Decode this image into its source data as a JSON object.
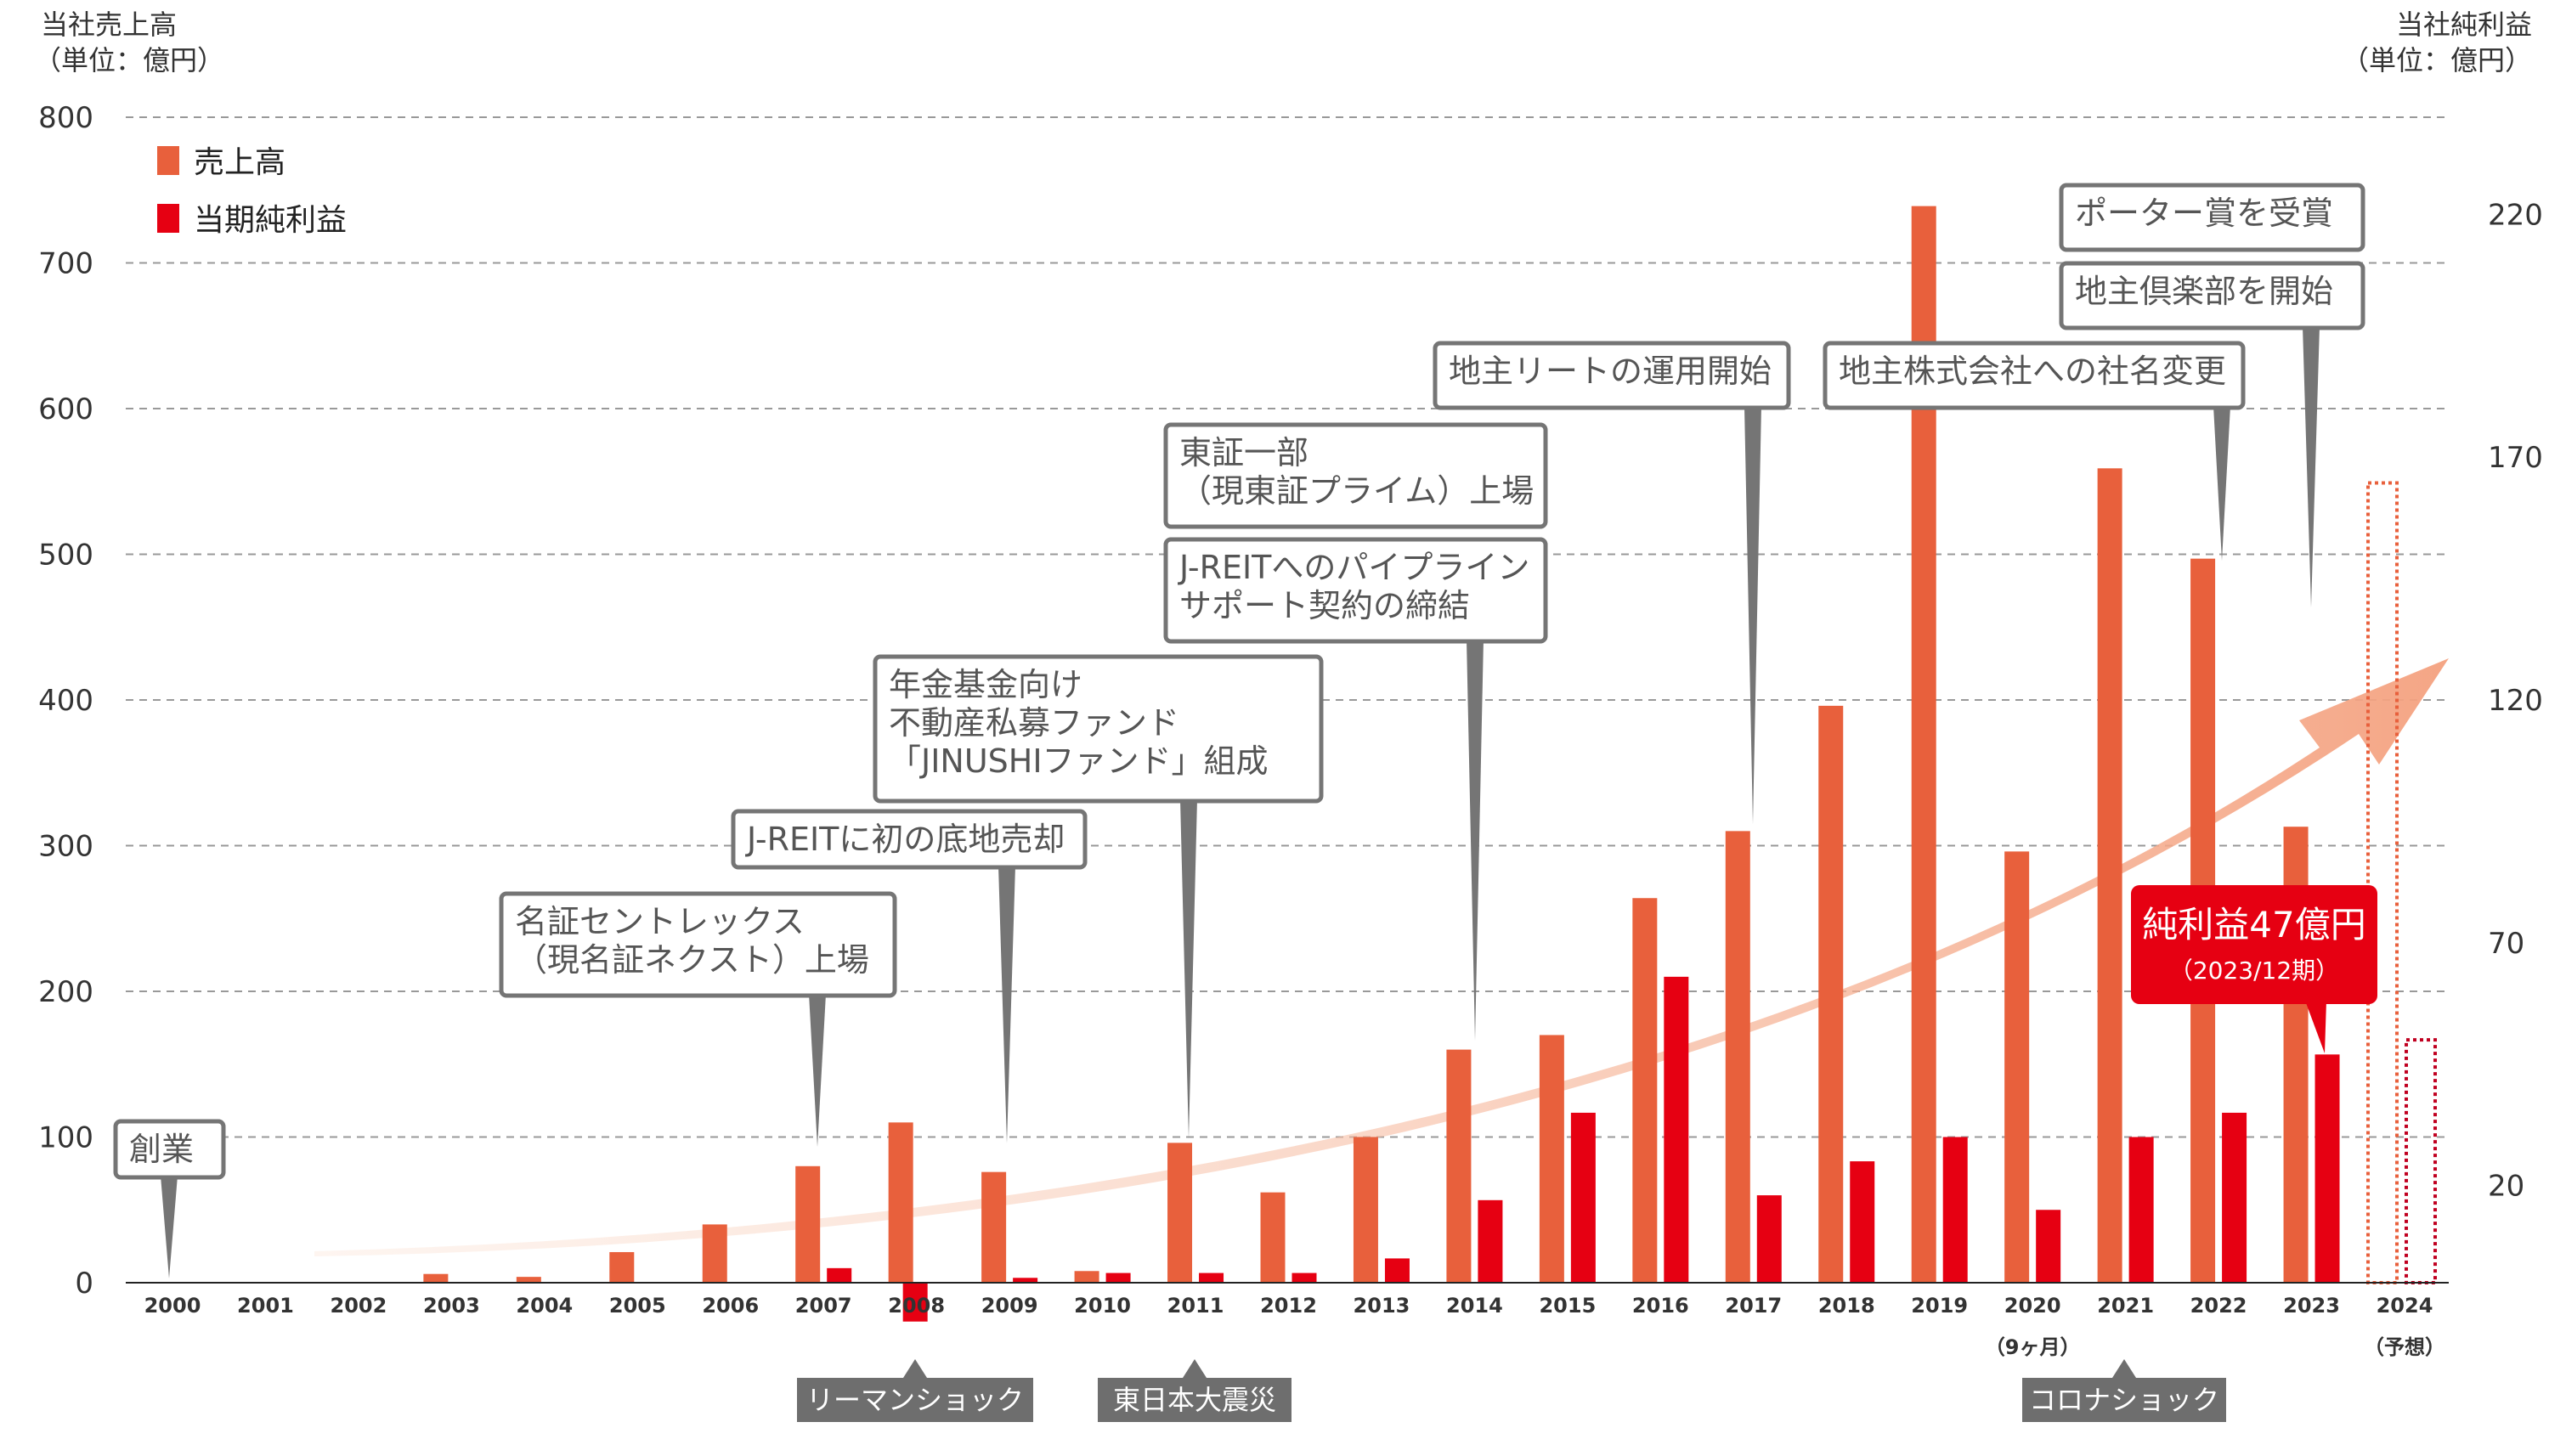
{
  "chart_data": {
    "type": "bar",
    "left_axis_title": [
      "当社売上高",
      "（単位：億円）"
    ],
    "right_axis_title": [
      "当社純利益",
      "（単位：億円）"
    ],
    "categories": [
      "2000",
      "2001",
      "2002",
      "2003",
      "2004",
      "2005",
      "2006",
      "2007",
      "2008",
      "2009",
      "2010",
      "2011",
      "2012",
      "2013",
      "2014",
      "2015",
      "2016",
      "2017",
      "2018",
      "2019",
      "2020",
      "2021",
      "2022",
      "2023",
      "2024"
    ],
    "category_sublabels": {
      "2020": "（9ヶ月）",
      "2024": "（予想）"
    },
    "left_ticks": [
      "0",
      "100",
      "200",
      "300",
      "400",
      "500",
      "600",
      "700",
      "800"
    ],
    "right_ticks": [
      "20",
      "70",
      "120",
      "170",
      "220"
    ],
    "ylim_left": [
      0,
      800
    ],
    "ylim_right": [
      0,
      240
    ],
    "series": [
      {
        "name": "売上高",
        "axis": "left",
        "color": "#e8603c",
        "values": [
          0,
          0,
          0,
          6,
          4,
          21,
          40,
          80,
          110,
          76,
          8,
          96,
          62,
          100,
          160,
          170,
          264,
          310,
          396,
          739,
          296,
          559,
          497,
          313,
          null
        ]
      },
      {
        "name": "当期純利益",
        "axis": "right",
        "color": "#e60012",
        "values": [
          0,
          0,
          0,
          0,
          0,
          0,
          0,
          3,
          -8,
          1,
          2,
          2,
          2,
          5,
          17,
          35,
          63,
          18,
          25,
          30,
          15,
          30,
          35,
          47,
          null
        ]
      }
    ],
    "forecast_2024": {
      "sales": 549,
      "net_income": 50
    },
    "grid": "horizontal dashed",
    "legend_position": "top-left",
    "annotations": [
      {
        "lines": [
          "創業"
        ],
        "year": "2000"
      },
      {
        "lines": [
          "名証セントレックス",
          "（現名証ネクスト）上場"
        ],
        "year": "2007"
      },
      {
        "lines": [
          "J-REITに初の底地売却"
        ],
        "year": "2009"
      },
      {
        "lines": [
          "年金基金向け",
          "不動産私募ファンド",
          "「JINUSHIファンド」組成"
        ],
        "year": "2011"
      },
      {
        "lines": [
          "東証一部",
          "（現東証プライム）上場"
        ],
        "year": "2014"
      },
      {
        "lines": [
          "J-REITへのパイプライン",
          "サポート契約の締結"
        ],
        "year": "2014"
      },
      {
        "lines": [
          "地主リートの運用開始"
        ],
        "year": "2017"
      },
      {
        "lines": [
          "地主株式会社への社名変更"
        ],
        "year": "2022"
      },
      {
        "lines": [
          "地主倶楽部を開始"
        ],
        "year": "2023"
      },
      {
        "lines": [
          "ポーター賞を受賞"
        ],
        "year": "2023"
      }
    ],
    "events": [
      {
        "label": "リーマンショック",
        "year": "2008"
      },
      {
        "label": "東日本大震災",
        "year": "2011"
      },
      {
        "label": "コロナショック",
        "year": "2021"
      }
    ],
    "callout": {
      "main": "純利益47億円",
      "sub": "（2023/12期）",
      "color": "#e60012"
    }
  }
}
